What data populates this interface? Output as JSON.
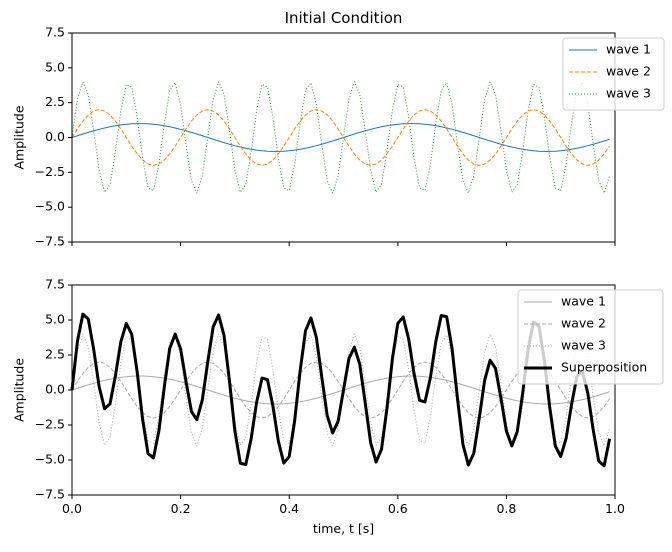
{
  "chart_data": [
    {
      "type": "line",
      "title": "Initial Condition",
      "xlabel": "",
      "ylabel": "Amplitude",
      "xlim": [
        0,
        1.0
      ],
      "ylim": [
        -7.5,
        7.5
      ],
      "x_ticks": [
        0.0,
        0.2,
        0.4,
        0.6,
        0.8,
        1.0
      ],
      "x_tick_labels_visible": false,
      "y_ticks": [
        -7.5,
        -5.0,
        -2.5,
        0.0,
        2.5,
        5.0,
        7.5
      ],
      "y_tick_labels": [
        "−7.5",
        "−5.0",
        "−2.5",
        "0.0",
        "2.5",
        "5.0",
        "7.5"
      ],
      "legend_position": "top-right",
      "x_sample_start": 0.0,
      "x_sample_step": 0.01,
      "x_sample_count": 100,
      "series": [
        {
          "name": "wave 1",
          "color": "#1f77b4",
          "style": "solid",
          "width": 1,
          "formula": "1.0*sin(2*pi*2*t)",
          "amplitude": 1.0,
          "frequency_hz": 2
        },
        {
          "name": "wave 2",
          "color": "#ff7f0e",
          "style": "dashed",
          "width": 1,
          "formula": "2.0*sin(2*pi*5*t)",
          "amplitude": 2.0,
          "frequency_hz": 5
        },
        {
          "name": "wave 3",
          "color": "#2ca02c",
          "style": "dotted",
          "width": 1,
          "formula": "4.0*sin(2*pi*12*t)",
          "amplitude": 4.0,
          "frequency_hz": 12
        }
      ]
    },
    {
      "type": "line",
      "title": "",
      "xlabel": "time, t [s]",
      "ylabel": "Amplitude",
      "xlim": [
        0,
        1.0
      ],
      "ylim": [
        -7.5,
        7.5
      ],
      "x_ticks": [
        0.0,
        0.2,
        0.4,
        0.6,
        0.8,
        1.0
      ],
      "x_tick_labels": [
        "0.0",
        "0.2",
        "0.4",
        "0.6",
        "0.8",
        "1.0"
      ],
      "y_ticks": [
        -7.5,
        -5.0,
        -2.5,
        0.0,
        2.5,
        5.0,
        7.5
      ],
      "y_tick_labels": [
        "−7.5",
        "−5.0",
        "−2.5",
        "0.0",
        "2.5",
        "5.0",
        "7.5"
      ],
      "legend_position": "top-right",
      "x_sample_start": 0.0,
      "x_sample_step": 0.01,
      "x_sample_count": 100,
      "series": [
        {
          "name": "wave 1",
          "color": "#aaaaaa",
          "style": "solid",
          "width": 1,
          "formula": "1.0*sin(2*pi*2*t)",
          "amplitude": 1.0,
          "frequency_hz": 2
        },
        {
          "name": "wave 2",
          "color": "#aaaaaa",
          "style": "dashed",
          "width": 1,
          "formula": "2.0*sin(2*pi*5*t)",
          "amplitude": 2.0,
          "frequency_hz": 5
        },
        {
          "name": "wave 3",
          "color": "#aaaaaa",
          "style": "dotted",
          "width": 1,
          "formula": "4.0*sin(2*pi*12*t)",
          "amplitude": 4.0,
          "frequency_hz": 12
        },
        {
          "name": "Superposition",
          "color": "#000000",
          "style": "solid",
          "width": 3,
          "formula": "sum of wave 1, wave 2, wave 3"
        }
      ]
    }
  ]
}
